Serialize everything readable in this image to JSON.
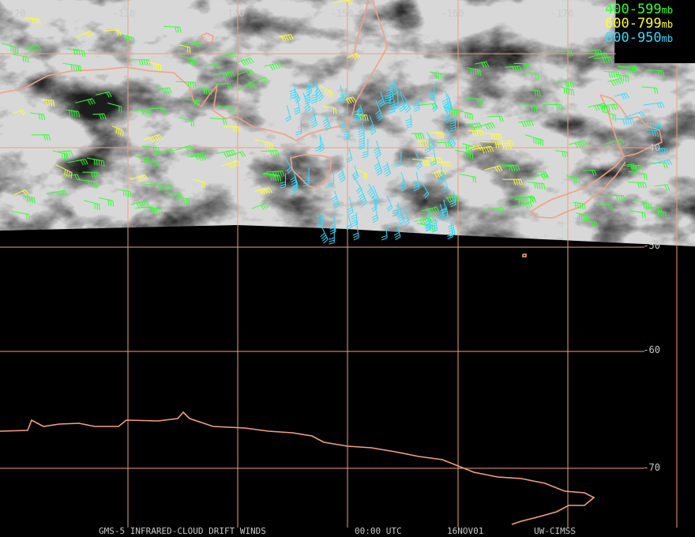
{
  "lon_labels": [
    "-120",
    "-130",
    "-140",
    "-150",
    "-160",
    "-170"
  ],
  "lat_labels": [
    "-40",
    "-50",
    "-60",
    "-70"
  ],
  "legend": [
    {
      "label": "400-599",
      "unit": "mb",
      "color": "#33ff33"
    },
    {
      "label": "600-799",
      "unit": "mb",
      "color": "#ffff33"
    },
    {
      "label": "800-950",
      "unit": "mb",
      "color": "#33ddff"
    }
  ],
  "footer": [
    "GMS-5 INFRARED-CLOUD DRIFT WINDS",
    "00:00 UTC",
    "16NOV01",
    "UW-CIMSS"
  ]
}
